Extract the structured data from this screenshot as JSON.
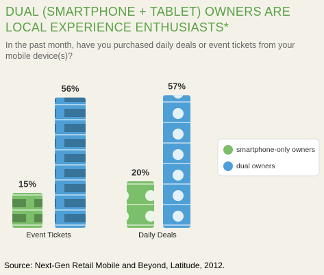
{
  "chart_data": {
    "type": "bar",
    "title": "DUAL (SMARTPHONE + TABLET) OWNERS ARE LOCAL EXPERIENCE ENTHUSIASTS*",
    "subtitle": "In the past month, have you purchased daily deals or event tickets from your mobile device(s)?",
    "source": "Source: Next-Gen Retail Mobile and Beyond, Latitude, 2012.",
    "categories": [
      "Event Tickets",
      "Daily Deals"
    ],
    "series": [
      {
        "name": "smartphone-only owners",
        "color": "#7cbf6b",
        "values": [
          15,
          20
        ],
        "value_labels": [
          "15%",
          "20%"
        ]
      },
      {
        "name": "dual owners",
        "color": "#4e9fd6",
        "values": [
          56,
          57
        ],
        "value_labels": [
          "56%",
          "57%"
        ]
      }
    ]
  }
}
